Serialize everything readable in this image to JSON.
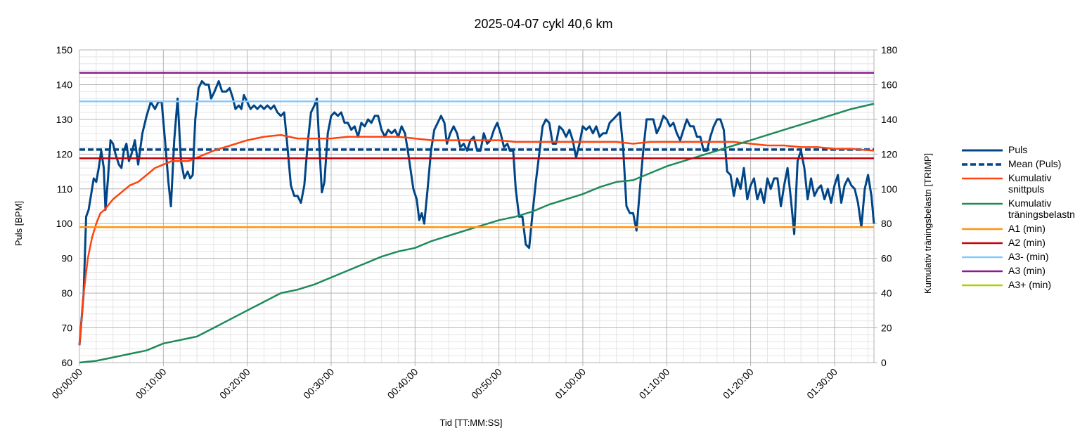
{
  "chart_data": {
    "type": "line",
    "title": "2025-04-07 cykl 40,6 km",
    "x_label": "Tid [TT:MM:SS]",
    "y_label": "Puls [BPM]",
    "y2_label": "Kumulativ träningsbelastn [TRIMP]",
    "xlim": [
      0,
      94.7
    ],
    "xticks": [
      {
        "value": 0,
        "label": "00:00:00"
      },
      {
        "value": 10,
        "label": "00:10:00"
      },
      {
        "value": 20,
        "label": "00:20:00"
      },
      {
        "value": 30,
        "label": "00:30:00"
      },
      {
        "value": 40,
        "label": "00:40:00"
      },
      {
        "value": 50,
        "label": "00:50:00"
      },
      {
        "value": 60,
        "label": "01:00:00"
      },
      {
        "value": 70,
        "label": "01:10:00"
      },
      {
        "value": 80,
        "label": "01:20:00"
      },
      {
        "value": 90,
        "label": "01:30:00"
      }
    ],
    "ylim": [
      60,
      150
    ],
    "yticks": [
      60,
      70,
      80,
      90,
      100,
      110,
      120,
      130,
      140,
      150
    ],
    "y2lim": [
      0,
      180
    ],
    "y2ticks": [
      0,
      20,
      40,
      60,
      80,
      100,
      120,
      140,
      160,
      180
    ],
    "grid": true,
    "legend": "right",
    "series": [
      {
        "name": "Puls",
        "color": "#004586",
        "width": 3,
        "x": [
          0,
          0.5,
          0.8,
          1.1,
          1.5,
          1.7,
          2.0,
          2.3,
          2.6,
          2.9,
          3.1,
          3.4,
          3.7,
          4.0,
          4.3,
          4.7,
          5.0,
          5.3,
          5.6,
          5.9,
          6.2,
          6.6,
          7.0,
          7.5,
          8.0,
          8.5,
          9.0,
          9.4,
          9.8,
          10.2,
          10.6,
          10.9,
          11.3,
          11.7,
          12.1,
          12.5,
          12.9,
          13.2,
          13.5,
          13.8,
          14.2,
          14.6,
          15.0,
          15.4,
          15.7,
          16.1,
          16.6,
          17.0,
          17.5,
          17.9,
          18.3,
          18.6,
          19.0,
          19.3,
          19.6,
          20.0,
          20.4,
          20.8,
          21.2,
          21.6,
          22.0,
          22.4,
          22.8,
          23.2,
          23.6,
          24.0,
          24.4,
          24.8,
          25.2,
          25.6,
          26.0,
          26.4,
          26.8,
          27.2,
          27.6,
          28.0,
          28.3,
          28.6,
          28.9,
          29.2,
          29.6,
          30.0,
          30.4,
          30.8,
          31.2,
          31.6,
          32.0,
          32.4,
          32.8,
          33.2,
          33.6,
          34.0,
          34.4,
          34.8,
          35.2,
          35.6,
          36.0,
          36.4,
          36.8,
          37.2,
          37.6,
          38.0,
          38.4,
          38.8,
          39.2,
          39.5,
          39.8,
          40.2,
          40.5,
          40.8,
          41.1,
          41.5,
          41.9,
          42.3,
          42.7,
          43.1,
          43.5,
          43.8,
          44.2,
          44.6,
          45.0,
          45.4,
          45.8,
          46.2,
          46.6,
          47.0,
          47.4,
          47.8,
          48.2,
          48.6,
          49.0,
          49.4,
          49.8,
          50.2,
          50.6,
          51.0,
          51.3,
          51.7,
          52.0,
          52.4,
          52.8,
          53.2,
          53.6,
          54.0,
          54.4,
          54.8,
          55.2,
          55.6,
          56.0,
          56.4,
          56.8,
          57.2,
          57.6,
          58.0,
          58.4,
          58.8,
          59.2,
          59.6,
          60.0,
          60.4,
          60.8,
          61.2,
          61.6,
          62.0,
          62.4,
          62.8,
          63.2,
          63.6,
          64.0,
          64.4,
          64.8,
          65.2,
          65.6,
          66.0,
          66.4,
          66.8,
          67.2,
          67.6,
          68.0,
          68.4,
          68.8,
          69.2,
          69.6,
          70.0,
          70.4,
          70.8,
          71.2,
          71.6,
          72.0,
          72.4,
          72.8,
          73.2,
          73.6,
          74.0,
          74.4,
          74.8,
          75.2,
          75.6,
          76.0,
          76.4,
          76.8,
          77.2,
          77.6,
          78.0,
          78.4,
          78.8,
          79.2,
          79.6,
          80.0,
          80.4,
          80.8,
          81.2,
          81.6,
          82.0,
          82.4,
          82.8,
          83.2,
          83.6,
          84.0,
          84.4,
          84.8,
          85.2,
          85.6,
          86.0,
          86.4,
          86.8,
          87.2,
          87.6,
          88.0,
          88.4,
          88.8,
          89.2,
          89.6,
          90.0,
          90.4,
          90.8,
          91.2,
          91.6,
          92.0,
          92.4,
          92.8,
          93.2,
          93.6,
          94.0,
          94.4,
          94.7
        ],
        "values": [
          65,
          80,
          102,
          104,
          110,
          113,
          112,
          116,
          121,
          116,
          104,
          113,
          124,
          123,
          120,
          117,
          116,
          121,
          123,
          118,
          120,
          124,
          117,
          126,
          131,
          135,
          133,
          135,
          135,
          124,
          112,
          105,
          124,
          136,
          118,
          113,
          115,
          113,
          114,
          130,
          139,
          141,
          140,
          140,
          136,
          138,
          141,
          138,
          138,
          139,
          136,
          133,
          134,
          133,
          137,
          135,
          133,
          134,
          133,
          134,
          133,
          134,
          133,
          134,
          132,
          131,
          132,
          122,
          111,
          108,
          108,
          106,
          111,
          123,
          132,
          134,
          136,
          122,
          109,
          112,
          126,
          131,
          132,
          131,
          132,
          129,
          129,
          127,
          128,
          125,
          129,
          128,
          130,
          129,
          131,
          131,
          127,
          125,
          127,
          126,
          127,
          125,
          128,
          126,
          120,
          115,
          110,
          107,
          101,
          103,
          100,
          110,
          121,
          127,
          129,
          131,
          129,
          123,
          126,
          128,
          126,
          122,
          123,
          121,
          124,
          125,
          121,
          121,
          126,
          123,
          124,
          127,
          129,
          126,
          122,
          123,
          121,
          121,
          110,
          102,
          102,
          94,
          93,
          103,
          112,
          120,
          128,
          130,
          129,
          123,
          123,
          128,
          127,
          125,
          127,
          124,
          119,
          123,
          128,
          127,
          128,
          126,
          128,
          125,
          126,
          126,
          129,
          130,
          131,
          132,
          122,
          105,
          103,
          103,
          98,
          110,
          121,
          130,
          130,
          130,
          126,
          128,
          131,
          130,
          128,
          129,
          126,
          124,
          127,
          130,
          128,
          128,
          125,
          125,
          121,
          121,
          125,
          128,
          130,
          130,
          127,
          115,
          114,
          108,
          113,
          110,
          116,
          107,
          111,
          113,
          107,
          110,
          106,
          113,
          110,
          113,
          113,
          105,
          111,
          116,
          107,
          97,
          118,
          121,
          116,
          107,
          113,
          108,
          110,
          111,
          107,
          110,
          106,
          111,
          114,
          106,
          111,
          113,
          111,
          110,
          106,
          99,
          110,
          114,
          108,
          100
        ]
      },
      {
        "name": "Mean (Puls)",
        "color": "#004586",
        "width": 3.5,
        "dash": true,
        "x": [
          0,
          94.7
        ],
        "values": [
          121.3,
          121.3
        ]
      },
      {
        "name": "Kumulativ snittpuls",
        "color": "#ff420e",
        "width": 2.5,
        "x": [
          0,
          0.5,
          1,
          1.5,
          2,
          2.5,
          3,
          4,
          5,
          6,
          7,
          8,
          9,
          10,
          11,
          12,
          13,
          14,
          16,
          18,
          20,
          22,
          24,
          26,
          28,
          30,
          32,
          34,
          36,
          38,
          40,
          42,
          44,
          46,
          48,
          50,
          52,
          54,
          56,
          58,
          60,
          62,
          64,
          66,
          68,
          70,
          72,
          74,
          76,
          78,
          80,
          82,
          84,
          86,
          88,
          90,
          92,
          94.7
        ],
        "values": [
          65,
          80,
          90,
          96,
          100,
          103,
          104,
          107,
          109,
          111,
          112,
          114,
          116,
          117,
          118,
          118,
          118,
          119,
          121,
          122.5,
          124,
          125,
          125.5,
          124.5,
          124.5,
          124.5,
          125,
          125,
          125,
          125,
          124.5,
          124,
          124,
          124,
          124,
          124,
          123.5,
          123.5,
          123.5,
          123.5,
          123.5,
          123.5,
          123.5,
          123,
          123.5,
          123.5,
          123.5,
          123.5,
          123.5,
          123.5,
          123,
          122.5,
          122.5,
          122,
          122,
          121.5,
          121.5,
          121
        ]
      },
      {
        "name": "Kumulativ träningsbelastn",
        "color": "#1f8a5a",
        "width": 2.5,
        "axis": "y2",
        "x": [
          0,
          2,
          4,
          6,
          8,
          10,
          12,
          14,
          16,
          18,
          20,
          22,
          24,
          26,
          28,
          30,
          32,
          34,
          36,
          38,
          40,
          42,
          44,
          46,
          48,
          50,
          52,
          54,
          56,
          58,
          60,
          62,
          64,
          66,
          68,
          70,
          72,
          74,
          76,
          78,
          80,
          82,
          84,
          86,
          88,
          90,
          92,
          94.7
        ],
        "values": [
          0,
          1,
          3,
          5,
          7,
          11,
          13,
          15,
          20,
          25,
          30,
          35,
          40,
          42,
          45,
          49,
          53,
          57,
          61,
          64,
          66,
          70,
          73,
          76,
          79,
          82,
          84,
          87,
          91,
          94,
          97,
          101,
          104,
          105,
          109,
          113,
          116,
          119,
          122,
          125,
          128,
          131,
          134,
          137,
          140,
          143,
          146,
          149
        ]
      },
      {
        "name": "A1 (min)",
        "color": "#ff950e",
        "width": 2.5,
        "x": [
          0,
          94.7
        ],
        "values": [
          99,
          99
        ]
      },
      {
        "name": "A2 (min)",
        "color": "#c5000b",
        "width": 2.5,
        "x": [
          0,
          94.7
        ],
        "values": [
          118.8,
          118.8
        ]
      },
      {
        "name": "A3- (min)",
        "color": "#83caff",
        "width": 2.5,
        "x": [
          0,
          94.7
        ],
        "values": [
          135.2,
          135.2
        ]
      },
      {
        "name": "A3 (min)",
        "color": "#8e1c8e",
        "width": 2.5,
        "x": [
          0,
          94.7
        ],
        "values": [
          143.4,
          143.4
        ]
      },
      {
        "name": "A3+ (min)",
        "color": "#aecf00",
        "width": 2.5,
        "x": [
          0,
          94.7
        ],
        "values": [
          null,
          null
        ]
      }
    ]
  }
}
